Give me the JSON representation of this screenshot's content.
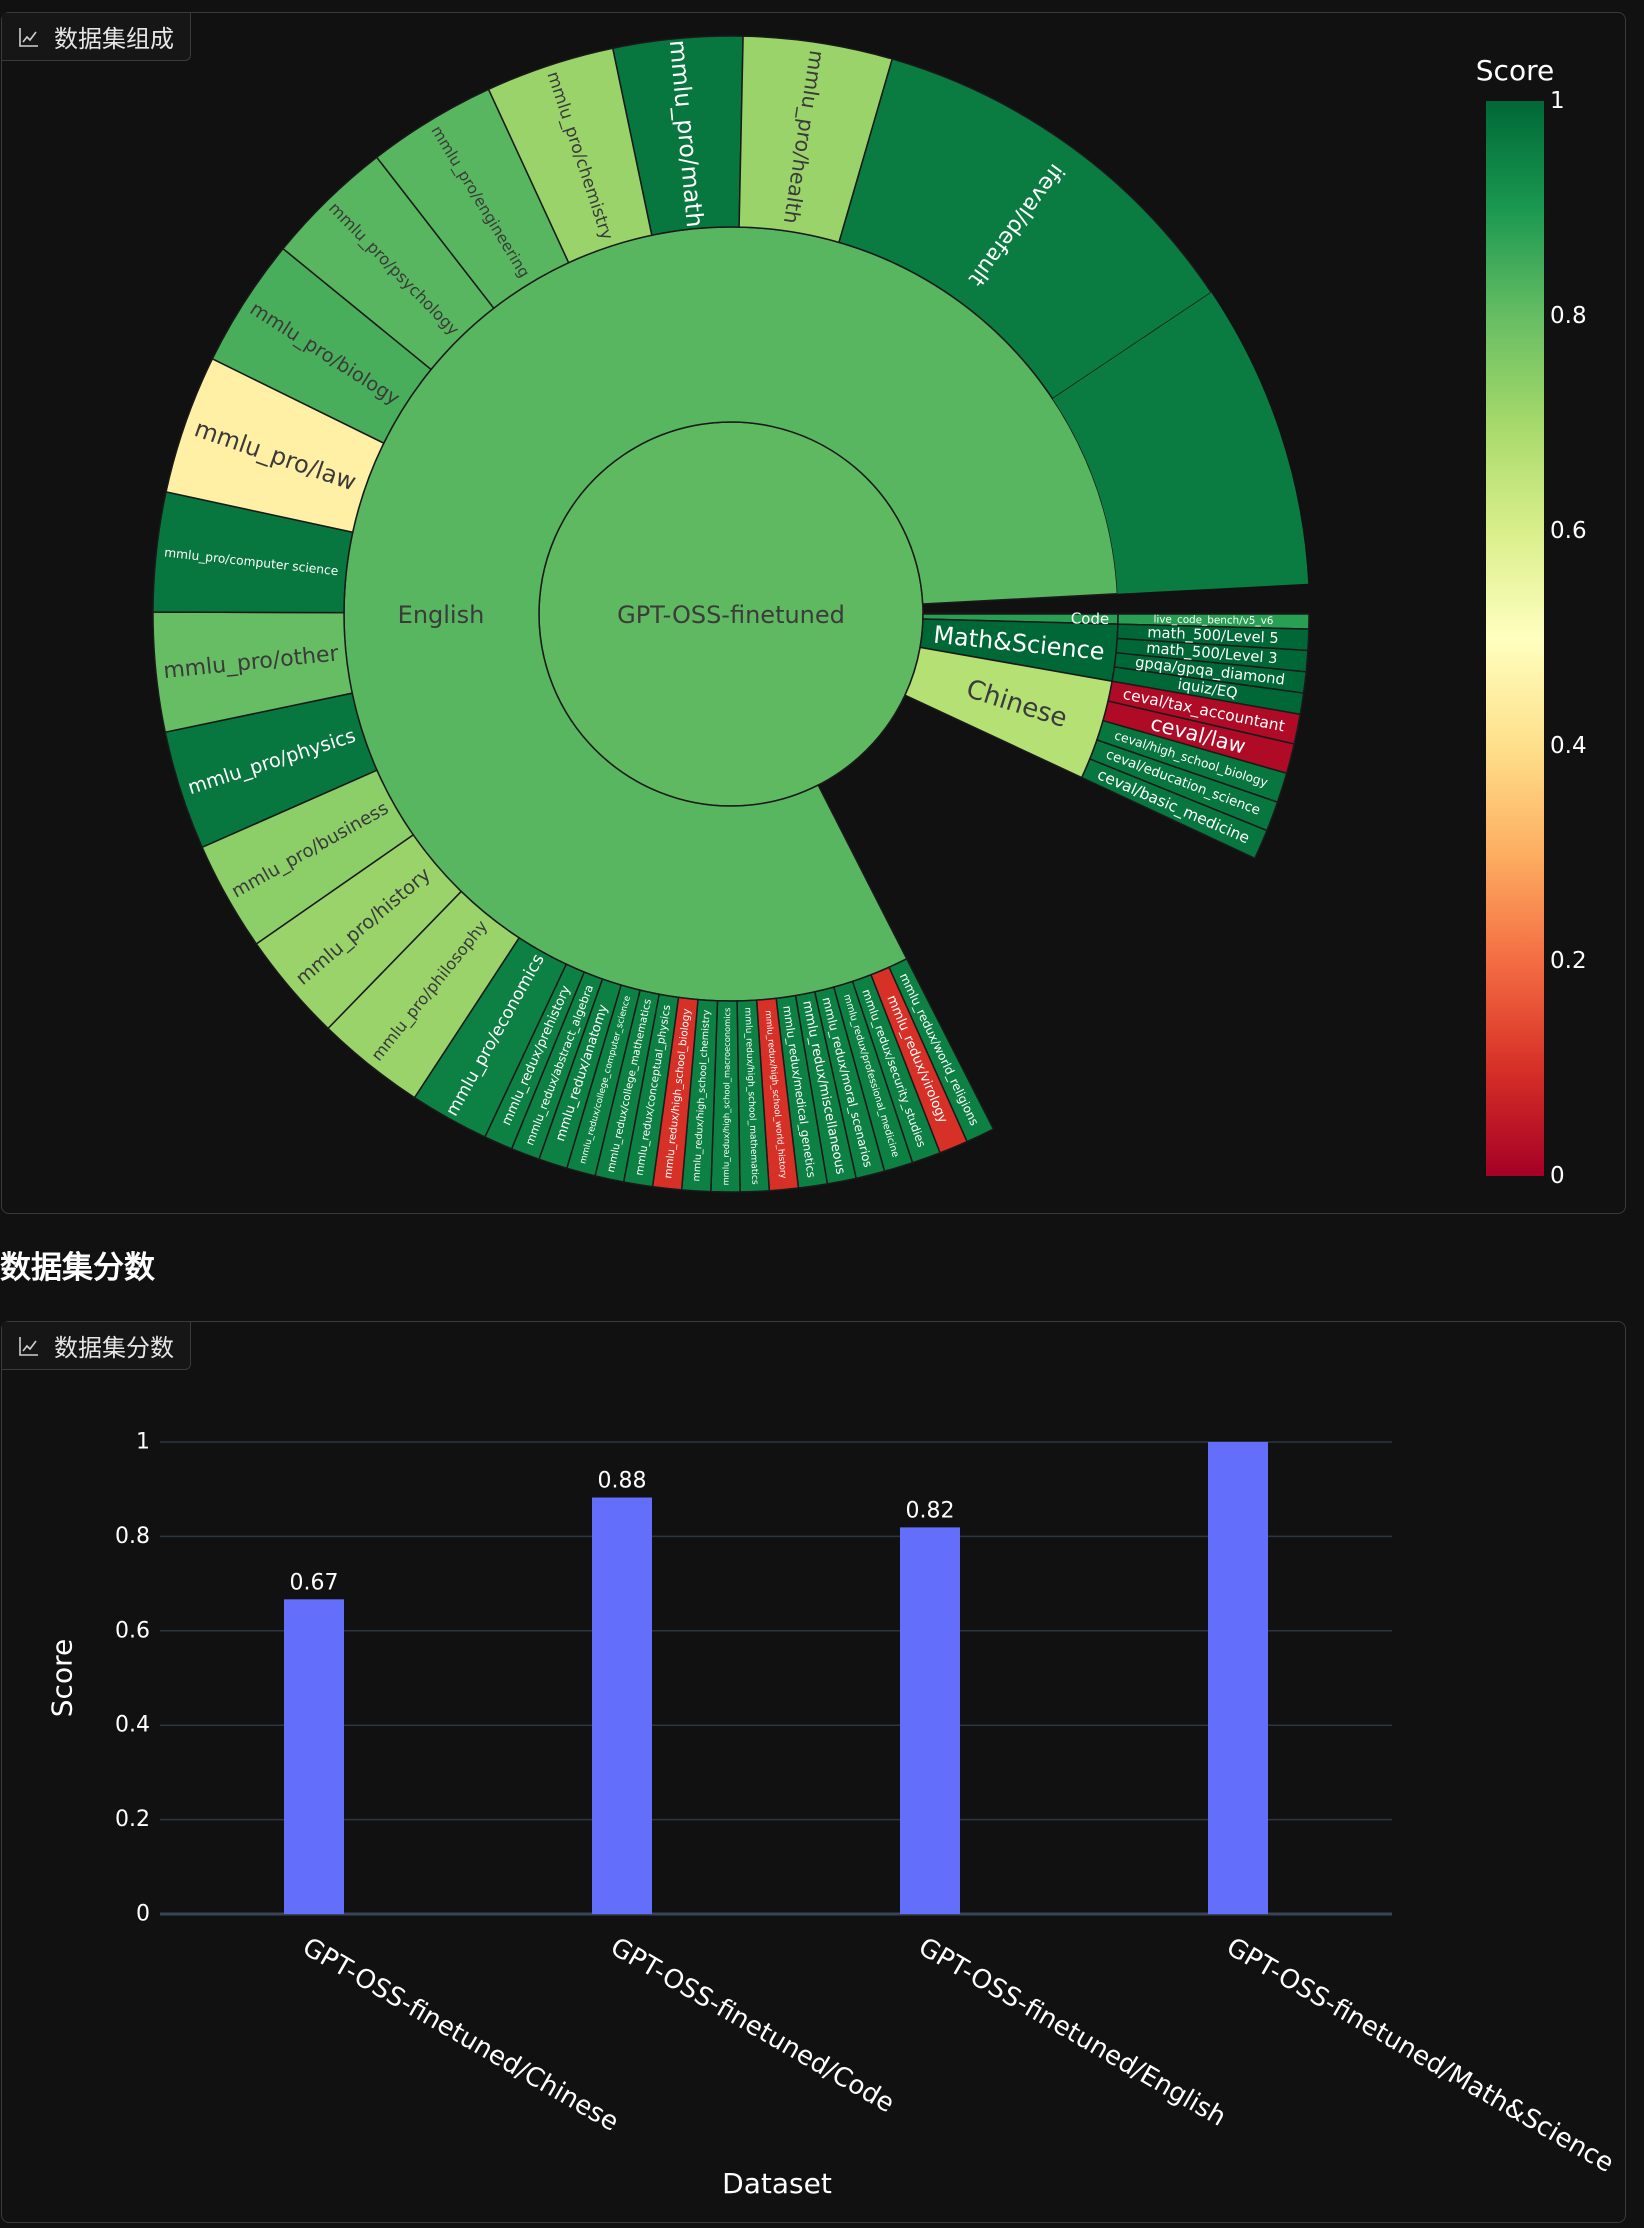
{
  "sunburst_panel": {
    "tab_label": "数据集组成",
    "tab_icon": "chart-icon"
  },
  "section": {
    "title": "数据集分数"
  },
  "bar_panel": {
    "tab_label": "数据集分数",
    "tab_icon": "chart-icon"
  },
  "colorbar": {
    "title": "Score",
    "ticks": [
      "1",
      "0.8",
      "0.6",
      "0.4",
      "0.2",
      "0"
    ],
    "tick_values": [
      1,
      0.8,
      0.6,
      0.4,
      0.2,
      0
    ],
    "colorscale": "RdYlGn"
  },
  "chart_data": [
    {
      "type": "sunburst",
      "root": {
        "label": "GPT-OSS-finetuned",
        "score": 0.81
      },
      "groups": [
        {
          "label": "English",
          "score": 0.82,
          "children": [
            {
              "label": "mmlu_pro/law",
              "score": 0.45
            },
            {
              "label": "mmlu_pro/biology",
              "score": 0.84
            },
            {
              "label": "mmlu_pro/psychology",
              "score": 0.82
            },
            {
              "label": "mmlu_pro/engineering",
              "score": 0.82
            },
            {
              "label": "mmlu_pro/chemistry",
              "score": 0.72
            },
            {
              "label": "mmlu_pro/math",
              "score": 0.97
            },
            {
              "label": "mmlu_pro/health",
              "score": 0.72
            },
            {
              "label": "ifeval/default",
              "score": 0.96
            },
            {
              "label": "mmlu_redux/world_religions",
              "score": 0.95
            },
            {
              "label": "mmlu_redux/virology",
              "score": 0.1
            },
            {
              "label": "mmlu_redux/security_studies",
              "score": 0.95
            },
            {
              "label": "mmlu_redux/professional_medicine",
              "score": 0.95
            },
            {
              "label": "mmlu_redux/moral_scenarios",
              "score": 0.95
            },
            {
              "label": "mmlu_redux/miscellaneous",
              "score": 0.95
            },
            {
              "label": "mmlu_redux/medical_genetics",
              "score": 0.95
            },
            {
              "label": "mmlu_redux/high_school_world_history",
              "score": 0.1
            },
            {
              "label": "mmlu_redux/high_school_mathematics",
              "score": 0.95
            },
            {
              "label": "mmlu_redux/high_school_macroeconomics",
              "score": 0.95
            },
            {
              "label": "mmlu_redux/high_school_chemistry",
              "score": 0.95
            },
            {
              "label": "mmlu_redux/high_school_biology",
              "score": 0.1
            },
            {
              "label": "mmlu_redux/conceptual_physics",
              "score": 0.95
            },
            {
              "label": "mmlu_redux/college_mathematics",
              "score": 0.95
            },
            {
              "label": "mmlu_redux/college_computer_science",
              "score": 0.95
            },
            {
              "label": "mmlu_redux/anatomy",
              "score": 0.95
            },
            {
              "label": "mmlu_redux/abstract_algebra",
              "score": 0.95
            },
            {
              "label": "mmlu_redux/prehistory",
              "score": 0.95
            },
            {
              "label": "mmlu_pro/economics",
              "score": 0.95
            },
            {
              "label": "mmlu_pro/philosophy",
              "score": 0.72
            },
            {
              "label": "mmlu_pro/history",
              "score": 0.72
            },
            {
              "label": "mmlu_pro/business",
              "score": 0.74
            },
            {
              "label": "mmlu_pro/physics",
              "score": 0.97
            },
            {
              "label": "mmlu_pro/other",
              "score": 0.8
            },
            {
              "label": "mmlu_pro/computer science",
              "score": 0.97
            }
          ]
        },
        {
          "label": "Code",
          "score": 0.88,
          "children": [
            {
              "label": "live_code_bench/v5_v6",
              "score": 0.88
            }
          ]
        },
        {
          "label": "Math&Science",
          "score": 1.0,
          "children": [
            {
              "label": "math_500/Level 5",
              "score": 1.0
            },
            {
              "label": "math_500/Level 3",
              "score": 1.0
            },
            {
              "label": "gpqa/gpqa_diamond",
              "score": 1.0
            },
            {
              "label": "iquiz/EQ",
              "score": 1.0
            }
          ]
        },
        {
          "label": "Chinese",
          "score": 0.67,
          "children": [
            {
              "label": "ceval/tax_accountant",
              "score": 0.02
            },
            {
              "label": "ceval/law",
              "score": 0.02
            },
            {
              "label": "ceval/high_school_biology",
              "score": 0.97
            },
            {
              "label": "ceval/education_science",
              "score": 0.97
            },
            {
              "label": "ceval/basic_medicine",
              "score": 0.97
            }
          ]
        }
      ]
    },
    {
      "type": "bar",
      "categories": [
        "GPT-OSS-finetuned/Chinese",
        "GPT-OSS-finetuned/Code",
        "GPT-OSS-finetuned/English",
        "GPT-OSS-finetuned/Math&Science"
      ],
      "values": [
        0.6667,
        0.8824,
        0.8191,
        1.0
      ],
      "data_labels": [
        "0.67",
        "0.88",
        "0.82",
        ""
      ],
      "xlabel": "Dataset",
      "ylabel": "Score",
      "ylim": [
        0,
        1
      ],
      "yticks": [
        0,
        0.2,
        0.4,
        0.6,
        0.8,
        1
      ],
      "ytick_labels": [
        "0",
        "0.2",
        "0.4",
        "0.6",
        "0.8",
        "1"
      ],
      "bar_color": "#636efa",
      "grid": true
    }
  ]
}
